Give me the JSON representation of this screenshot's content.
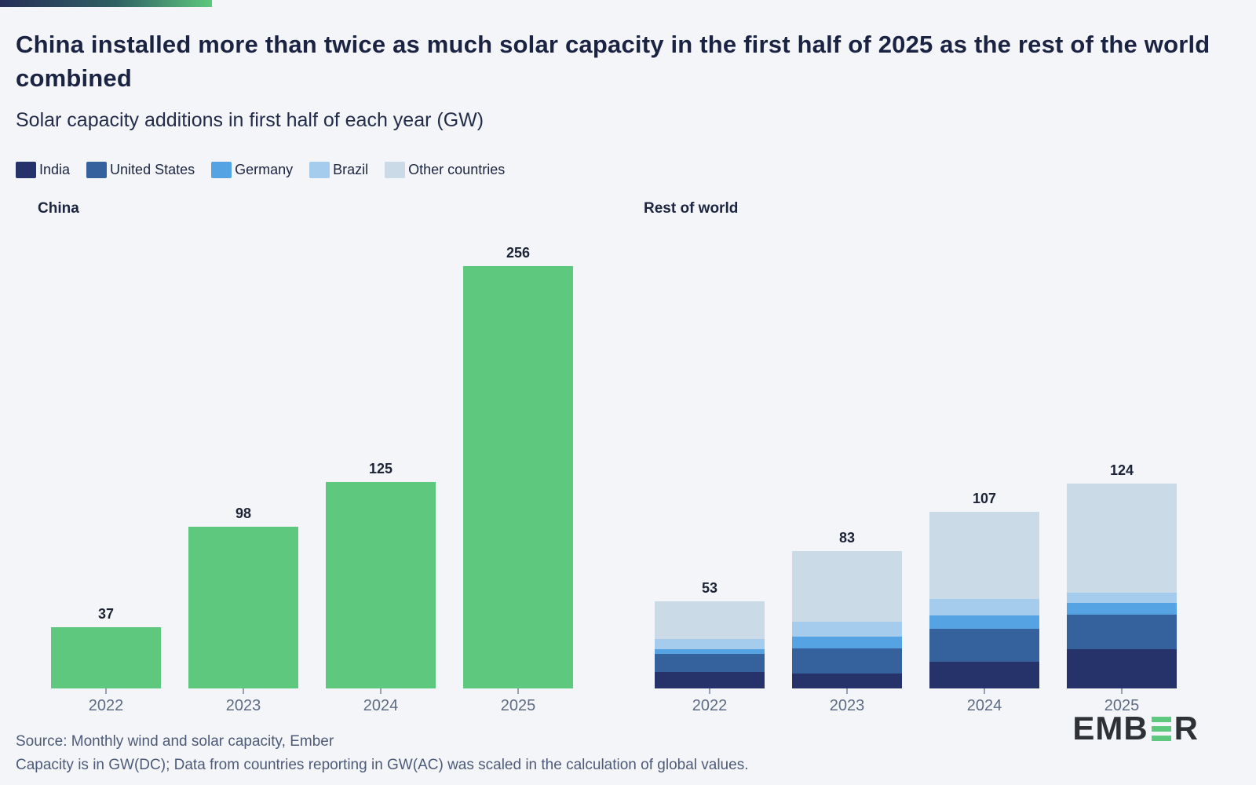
{
  "header": {
    "title": "China installed more than twice as much solar capacity in the first half of 2025 as the rest of the world combined",
    "subtitle": "Solar capacity additions in first half of each year (GW)"
  },
  "legend": {
    "items": [
      {
        "label": "India",
        "color": "#26336b"
      },
      {
        "label": "United States",
        "color": "#35619c"
      },
      {
        "label": "Germany",
        "color": "#55a3e2"
      },
      {
        "label": "Brazil",
        "color": "#a5cbed"
      },
      {
        "label": "Other countries",
        "color": "#cbdae7"
      }
    ]
  },
  "chart_data": [
    {
      "type": "bar",
      "title": "China",
      "categories": [
        "2022",
        "2023",
        "2024",
        "2025"
      ],
      "series": [
        {
          "name": "China",
          "color": "#5dc87e",
          "values": [
            37,
            98,
            125,
            256
          ]
        }
      ],
      "value_labels": [
        "37",
        "98",
        "125",
        "256"
      ],
      "ylabel": "GW",
      "ylim": [
        0,
        270
      ],
      "grid": false,
      "legend_position": "none",
      "bar_label_position": "top"
    },
    {
      "type": "stacked-bar",
      "title": "Rest of world",
      "categories": [
        "2022",
        "2023",
        "2024",
        "2025"
      ],
      "stack_order_bottom_to_top": [
        "India",
        "United States",
        "Germany",
        "Brazil",
        "Other countries"
      ],
      "series": [
        {
          "name": "India",
          "color": "#26336b",
          "values": [
            10,
            9,
            16,
            24
          ]
        },
        {
          "name": "United States",
          "color": "#35619c",
          "values": [
            11,
            15,
            20,
            21
          ]
        },
        {
          "name": "Germany",
          "color": "#55a3e2",
          "values": [
            3,
            7,
            8,
            7
          ]
        },
        {
          "name": "Brazil",
          "color": "#a5cbed",
          "values": [
            6,
            9,
            10,
            6
          ]
        },
        {
          "name": "Other countries",
          "color": "#cbdae7",
          "values": [
            23,
            43,
            53,
            66
          ]
        }
      ],
      "totals": [
        53,
        83,
        107,
        124
      ],
      "value_labels": [
        "53",
        "83",
        "107",
        "124"
      ],
      "ylabel": "GW",
      "ylim": [
        0,
        270
      ],
      "grid": false,
      "legend_position": "top",
      "bar_label_position": "top"
    }
  ],
  "footer": {
    "source_line": "Source: Monthly wind and solar capacity, Ember",
    "note_line": "Capacity is in GW(DC); Data from countries reporting in GW(AC) was scaled in the calculation of global values.",
    "logo": {
      "prefix": "EMB",
      "suffix": "R"
    }
  },
  "style": {
    "background": "#f3f5f9",
    "accent_green": "#5dc87e",
    "topbar_gradient": [
      "#262f58",
      "#2f6163",
      "#5dc87e"
    ]
  }
}
